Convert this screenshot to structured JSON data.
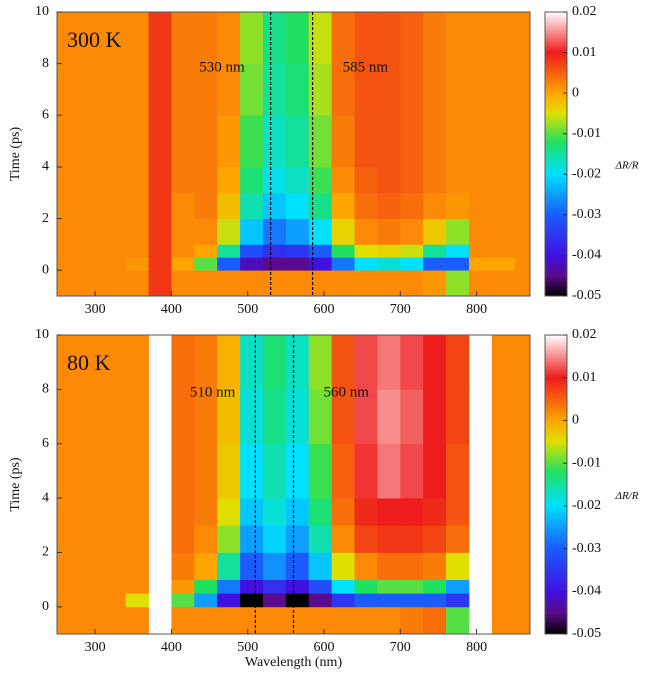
{
  "chart_data": [
    {
      "type": "heatmap",
      "annotation": "300 K",
      "y_label": "Time (ps)",
      "xlim": [
        250,
        870
      ],
      "ylim": [
        -1,
        10
      ],
      "xticks": [
        300,
        400,
        500,
        600,
        700,
        800
      ],
      "yticks": [
        0,
        2,
        4,
        6,
        8,
        10
      ],
      "xbins": [
        250,
        280,
        310,
        340,
        370,
        400,
        430,
        460,
        490,
        520,
        550,
        580,
        610,
        640,
        670,
        700,
        730,
        760,
        790,
        820,
        850,
        870
      ],
      "ybins": [
        -1,
        0,
        0.5,
        1,
        2,
        3,
        4,
        6,
        8,
        10
      ],
      "vlines": [
        530,
        585
      ],
      "vline_labels": [
        "530 nm",
        "585 nm"
      ],
      "z": [
        [
          0.002,
          0.002,
          0.002,
          0.002,
          0.008,
          0.002,
          0.002,
          0.002,
          0.002,
          0.002,
          0.002,
          0.002,
          0.002,
          0.002,
          0.002,
          0.002,
          0.001,
          -0.008,
          0.002,
          0.002,
          0.002
        ],
        [
          0.002,
          0.002,
          0.002,
          0.001,
          0.008,
          0.0,
          -0.01,
          -0.03,
          -0.042,
          -0.045,
          -0.045,
          -0.04,
          -0.028,
          -0.02,
          -0.018,
          -0.02,
          -0.03,
          -0.03,
          0.0,
          0.0,
          0.002
        ],
        [
          0.002,
          0.002,
          0.002,
          0.002,
          0.008,
          0.002,
          0.0,
          -0.015,
          -0.032,
          -0.036,
          -0.035,
          -0.03,
          -0.012,
          -0.005,
          -0.004,
          -0.006,
          -0.015,
          -0.02,
          0.002,
          0.002,
          0.002
        ],
        [
          0.002,
          0.002,
          0.002,
          0.002,
          0.008,
          0.002,
          0.002,
          -0.006,
          -0.022,
          -0.028,
          -0.025,
          -0.02,
          -0.004,
          0.002,
          0.003,
          0.002,
          -0.003,
          -0.008,
          0.002,
          0.002,
          0.002
        ],
        [
          0.002,
          0.002,
          0.002,
          0.002,
          0.008,
          0.002,
          0.003,
          -0.002,
          -0.016,
          -0.022,
          -0.02,
          -0.014,
          0.0,
          0.004,
          0.005,
          0.004,
          0.002,
          0.001,
          0.002,
          0.002,
          0.002
        ],
        [
          0.002,
          0.002,
          0.002,
          0.002,
          0.008,
          0.003,
          0.003,
          0.0,
          -0.013,
          -0.019,
          -0.017,
          -0.011,
          0.002,
          0.005,
          0.006,
          0.005,
          0.003,
          0.002,
          0.002,
          0.002,
          0.002
        ],
        [
          0.002,
          0.002,
          0.002,
          0.002,
          0.008,
          0.003,
          0.003,
          0.001,
          -0.011,
          -0.017,
          -0.015,
          -0.009,
          0.003,
          0.006,
          0.006,
          0.005,
          0.003,
          0.002,
          0.002,
          0.002,
          0.002
        ],
        [
          0.002,
          0.002,
          0.002,
          0.002,
          0.008,
          0.003,
          0.003,
          0.002,
          -0.009,
          -0.015,
          -0.013,
          -0.007,
          0.004,
          0.006,
          0.006,
          0.005,
          0.003,
          0.002,
          0.002,
          0.002,
          0.002
        ],
        [
          0.002,
          0.002,
          0.002,
          0.002,
          0.008,
          0.003,
          0.003,
          0.002,
          -0.008,
          -0.014,
          -0.012,
          -0.006,
          0.004,
          0.006,
          0.006,
          0.005,
          0.003,
          0.002,
          0.002,
          0.002,
          0.002
        ]
      ],
      "colorbar_label": "ΔR/R",
      "clim": [
        -0.05,
        0.02
      ],
      "cticks": [
        0.02,
        0.01,
        0,
        -0.01,
        -0.02,
        -0.03,
        -0.04,
        -0.05
      ],
      "colormap": [
        {
          "value": -0.05,
          "color": "#000000"
        },
        {
          "value": -0.045,
          "color": "#5a0a8c"
        },
        {
          "value": -0.04,
          "color": "#4010e0"
        },
        {
          "value": -0.03,
          "color": "#1a5cff"
        },
        {
          "value": -0.02,
          "color": "#00e0ff"
        },
        {
          "value": -0.012,
          "color": "#20e060"
        },
        {
          "value": -0.005,
          "color": "#e0e000"
        },
        {
          "value": 0,
          "color": "#ffa500"
        },
        {
          "value": 0.01,
          "color": "#ee1c1c"
        },
        {
          "value": 0.02,
          "color": "#ffffff"
        }
      ]
    },
    {
      "type": "heatmap",
      "annotation": "80 K",
      "y_label": "Time (ps)",
      "x_label": "Wavelength (nm)",
      "xlim": [
        250,
        870
      ],
      "ylim": [
        -1,
        10
      ],
      "xticks": [
        300,
        400,
        500,
        600,
        700,
        800
      ],
      "yticks": [
        0,
        2,
        4,
        6,
        8,
        10
      ],
      "xbins": [
        250,
        280,
        310,
        340,
        370,
        400,
        430,
        460,
        490,
        520,
        550,
        580,
        610,
        640,
        670,
        700,
        730,
        760,
        790,
        820,
        850,
        870
      ],
      "ybins": [
        -1,
        0,
        0.5,
        1,
        2,
        3,
        4,
        6,
        8,
        10
      ],
      "vlines": [
        510,
        560
      ],
      "vline_labels": [
        "510 nm",
        "560 nm"
      ],
      "z": [
        [
          0.002,
          0.002,
          0.002,
          0.002,
          null,
          0.002,
          0.002,
          0.002,
          0.002,
          0.002,
          0.002,
          0.002,
          0.002,
          0.002,
          0.002,
          0.003,
          0.004,
          -0.01,
          null,
          0.002,
          0.002
        ],
        [
          0.002,
          0.002,
          0.002,
          -0.005,
          null,
          -0.01,
          -0.025,
          -0.04,
          -0.05,
          -0.045,
          -0.05,
          -0.045,
          -0.035,
          -0.03,
          -0.03,
          -0.03,
          -0.03,
          -0.035,
          null,
          0.002,
          0.002
        ],
        [
          0.002,
          0.002,
          0.002,
          0.002,
          null,
          0.001,
          -0.012,
          -0.028,
          -0.04,
          -0.036,
          -0.04,
          -0.032,
          -0.02,
          -0.012,
          -0.01,
          -0.01,
          -0.012,
          -0.025,
          null,
          0.002,
          0.002
        ],
        [
          0.002,
          0.002,
          0.002,
          0.002,
          null,
          0.003,
          0.0,
          -0.015,
          -0.03,
          -0.026,
          -0.03,
          -0.022,
          -0.005,
          0.002,
          0.004,
          0.004,
          0.003,
          -0.005,
          null,
          0.002,
          0.002
        ],
        [
          0.002,
          0.002,
          0.002,
          0.002,
          null,
          0.004,
          0.002,
          -0.008,
          -0.025,
          -0.021,
          -0.025,
          -0.016,
          0.002,
          0.007,
          0.008,
          0.008,
          0.007,
          0.004,
          null,
          0.002,
          0.002
        ],
        [
          0.002,
          0.002,
          0.002,
          0.002,
          null,
          0.004,
          0.003,
          -0.005,
          -0.022,
          -0.018,
          -0.022,
          -0.013,
          0.004,
          0.009,
          0.01,
          0.01,
          0.009,
          0.006,
          null,
          0.002,
          0.002
        ],
        [
          0.002,
          0.002,
          0.002,
          0.002,
          null,
          0.004,
          0.003,
          -0.003,
          -0.02,
          -0.016,
          -0.02,
          -0.011,
          0.005,
          0.011,
          0.014,
          0.012,
          0.01,
          0.006,
          null,
          0.002,
          0.002
        ],
        [
          0.002,
          0.002,
          0.002,
          0.002,
          null,
          0.004,
          0.003,
          -0.002,
          -0.018,
          -0.014,
          -0.018,
          -0.009,
          0.006,
          0.012,
          0.015,
          0.013,
          0.01,
          0.007,
          null,
          0.002,
          0.002
        ],
        [
          0.002,
          0.002,
          0.002,
          0.002,
          null,
          0.004,
          0.003,
          -0.001,
          -0.017,
          -0.013,
          -0.017,
          -0.008,
          0.006,
          0.012,
          0.014,
          0.012,
          0.01,
          0.007,
          null,
          0.002,
          0.002
        ]
      ],
      "colorbar_label": "ΔR/R",
      "clim": [
        -0.05,
        0.02
      ],
      "cticks": [
        0.02,
        0.01,
        0,
        -0.01,
        -0.02,
        -0.03,
        -0.04,
        -0.05
      ],
      "colormap": [
        {
          "value": -0.05,
          "color": "#000000"
        },
        {
          "value": -0.045,
          "color": "#5a0a8c"
        },
        {
          "value": -0.04,
          "color": "#4010e0"
        },
        {
          "value": -0.03,
          "color": "#1a5cff"
        },
        {
          "value": -0.02,
          "color": "#00e0ff"
        },
        {
          "value": -0.012,
          "color": "#20e060"
        },
        {
          "value": -0.005,
          "color": "#e0e000"
        },
        {
          "value": 0,
          "color": "#ffa500"
        },
        {
          "value": 0.01,
          "color": "#ee1c1c"
        },
        {
          "value": 0.02,
          "color": "#ffffff"
        }
      ]
    }
  ]
}
